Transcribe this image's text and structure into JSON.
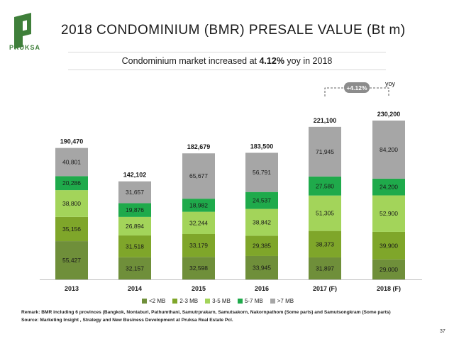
{
  "brand": {
    "name": "PRUKSA",
    "color": "#3f7f3a"
  },
  "title": "2018 CONDOMINIUM (BMR) PRESALE VALUE (Bt m)",
  "subtitle": {
    "prefix": "Condominium market increased at ",
    "highlight": "4.12%",
    "suffix": " yoy in 2018"
  },
  "chart_data": {
    "type": "bar",
    "stacked": true,
    "categories": [
      "2013",
      "2014",
      "2015",
      "2016",
      "2017 (F)",
      "2018 (F)"
    ],
    "series": [
      {
        "name": "<2 MB",
        "color": "#6f8f3a",
        "values": [
          55427,
          32157,
          32598,
          33945,
          31897,
          29000
        ],
        "labels": [
          "55,427",
          "32,157",
          "32,598",
          "33,945",
          "31,897",
          "29,000"
        ]
      },
      {
        "name": "2-3 MB",
        "color": "#7fa62a",
        "values": [
          35156,
          31518,
          33179,
          29385,
          38373,
          39900
        ],
        "labels": [
          "35,156",
          "31,518",
          "33,179",
          "29,385",
          "38,373",
          "39,900"
        ]
      },
      {
        "name": "3-5 MB",
        "color": "#a3d45a",
        "values": [
          38800,
          26894,
          32244,
          38842,
          51305,
          52900
        ],
        "labels": [
          "38,800",
          "26,894",
          "32,244",
          "38,842",
          "51,305",
          "52,900"
        ]
      },
      {
        "name": "5-7 MB",
        "color": "#1faa4b",
        "values": [
          20286,
          19876,
          18982,
          24537,
          27580,
          24200
        ],
        "labels": [
          "20,286",
          "19,876",
          "18,982",
          "24,537",
          "27,580",
          "24,200"
        ]
      },
      {
        "name": ">7 MB",
        "color": "#a6a6a6",
        "values": [
          40801,
          31657,
          65677,
          56791,
          71945,
          84200
        ],
        "labels": [
          "40,801",
          "31,657",
          "65,677",
          "56,791",
          "71,945",
          "84,200"
        ]
      }
    ],
    "totals": [
      190470,
      142102,
      182679,
      183500,
      221100,
      230200
    ],
    "total_labels": [
      "190,470",
      "142,102",
      "182,679",
      "183,500",
      "221,100",
      "230,200"
    ],
    "ylim": [
      0,
      230200
    ],
    "annotation": {
      "text": "+4.12%",
      "note": "yoy",
      "from": "2017 (F)",
      "to": "2018 (F)"
    },
    "legend_position": "bottom"
  },
  "remark": "Remark: BMR including 6 provinces (Bangkok, Nontaburi, Pathumthani, Samutrprakarn, Samutsakorn, Nakornpathom (Some parts) and Samutsongkram (Some parts)",
  "source": "Source: Marketing Insight , Strategy and New Business Development at Pruksa Real Estate Pcl.",
  "page_number": "37"
}
